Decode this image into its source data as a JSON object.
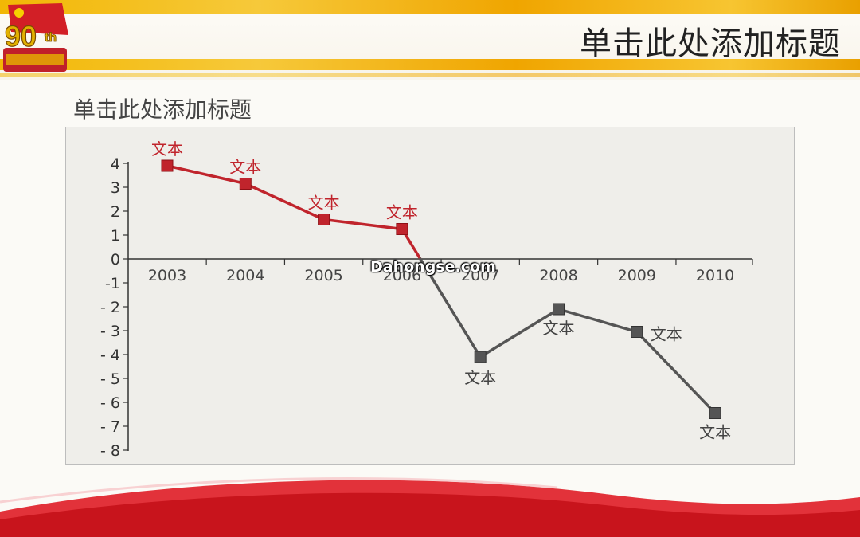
{
  "header": {
    "title": "单击此处添加标题"
  },
  "slide": {
    "title": "单击此处添加标题"
  },
  "badge": {
    "text": "90",
    "suffix": "th"
  },
  "watermark": "Dahongse.com",
  "colors": {
    "positive": "#c0242c",
    "negative": "#555555",
    "gold": "#f2b705"
  },
  "chart_data": {
    "type": "line",
    "categories": [
      "2003",
      "2004",
      "2005",
      "2006",
      "2007",
      "2008",
      "2009",
      "2010"
    ],
    "values": [
      3.9,
      3.15,
      1.65,
      1.25,
      -4.1,
      -2.1,
      -3.05,
      -6.45
    ],
    "data_labels": [
      "文本",
      "文本",
      "文本",
      "文本",
      "文本",
      "文本",
      "文本",
      "文本"
    ],
    "ylim": [
      -8,
      4
    ],
    "yticks": [
      "4",
      "3",
      "2",
      "1",
      "0",
      "-1",
      "- 2",
      "- 3",
      "- 4",
      "- 5",
      "- 6",
      "- 7",
      "- 8"
    ],
    "grid": false,
    "xlabel": "",
    "ylabel": "",
    "note": "segments with positive values drawn red, negative drawn gray"
  }
}
